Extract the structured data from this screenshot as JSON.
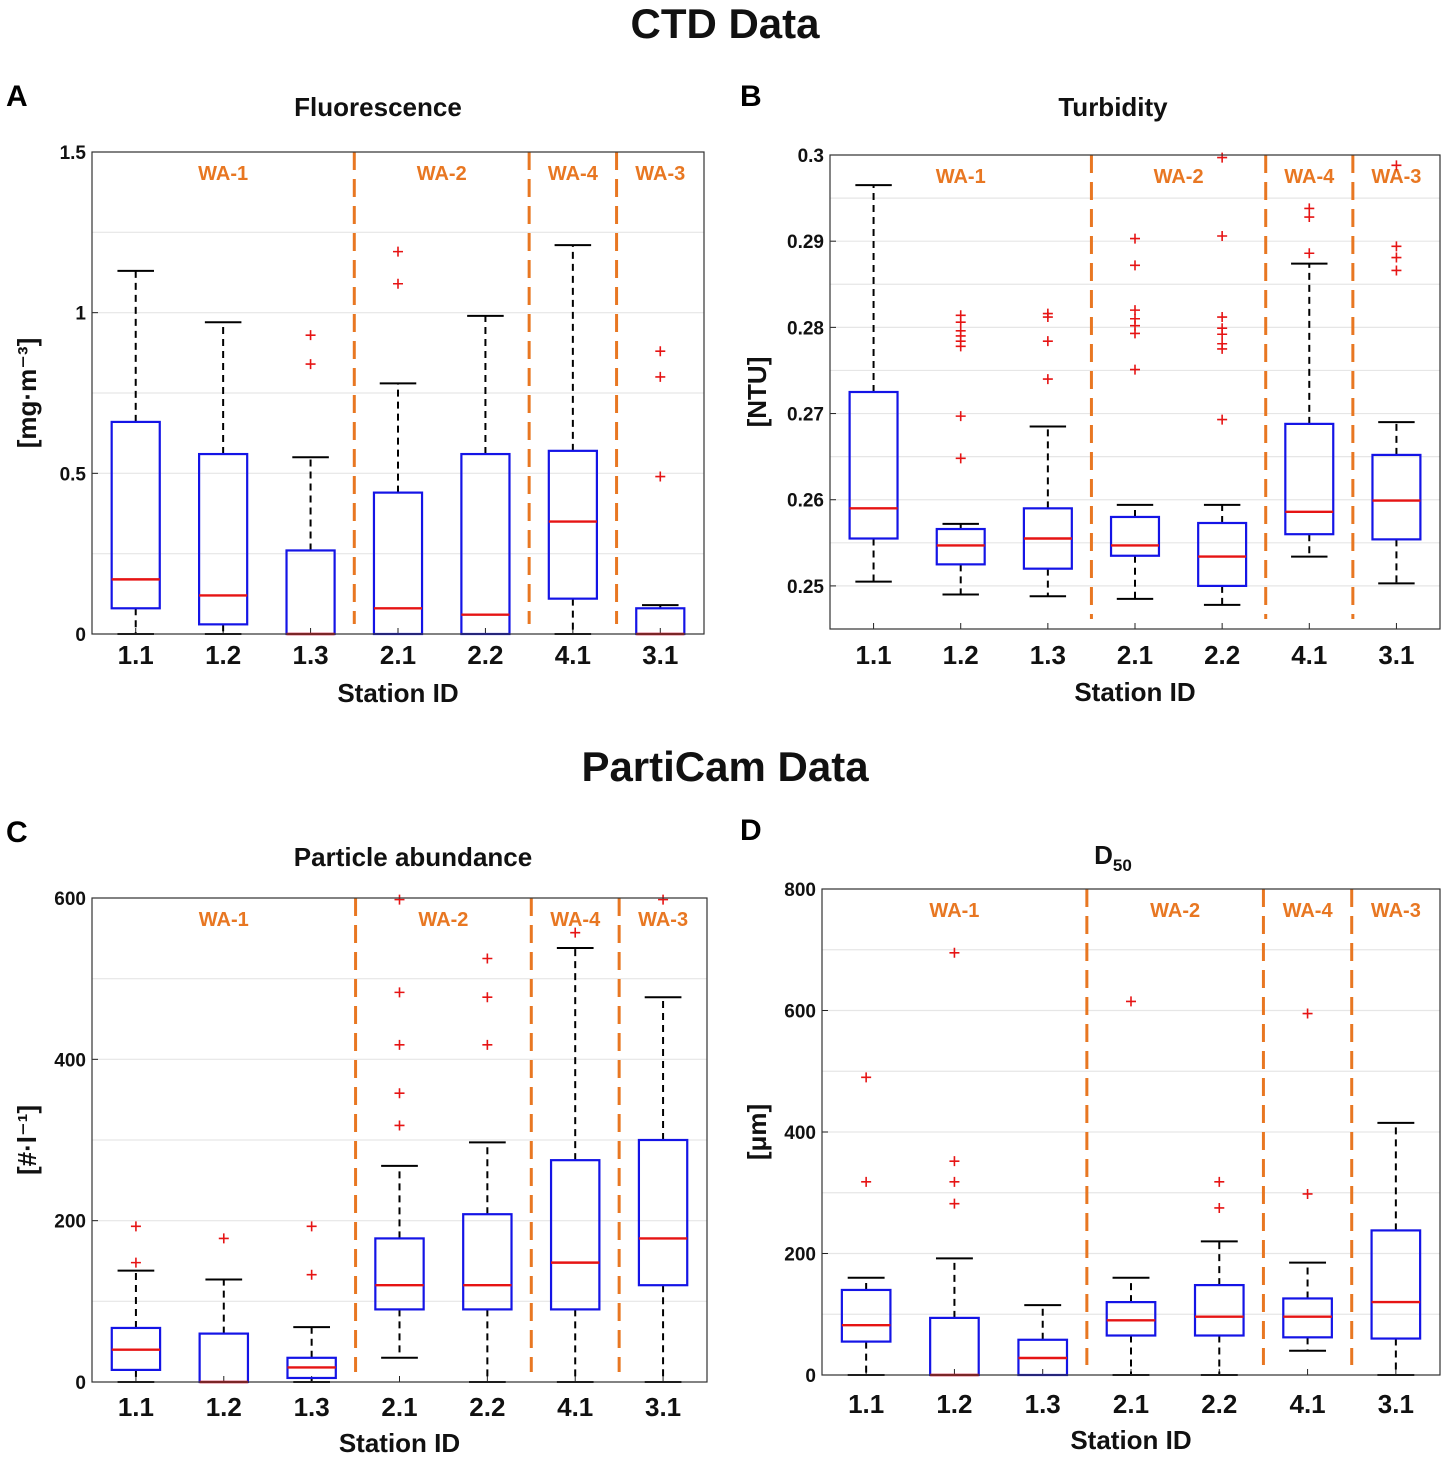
{
  "sections": {
    "ctd_title": "CTD Data",
    "particam_title": "PartiCam Data"
  },
  "colors": {
    "box": "#1414E6",
    "median": "#E61414",
    "outlier": "#E61414",
    "whisker": "#000000",
    "divider": "#E87722",
    "region_label": "#E87722",
    "grid": "#E6E6E6"
  },
  "chart_data": [
    {
      "type": "box",
      "panel": "A",
      "title": "Fluorescence",
      "ylabel": "[mg·m⁻³]",
      "xlabel": "Station ID",
      "ylim": [
        0,
        1.5
      ],
      "yticks": [
        0,
        0.5,
        1,
        1.5
      ],
      "ytick_labels": [
        "0",
        "0.5",
        "1",
        "1.5"
      ],
      "grid": true,
      "categories": [
        "1.1",
        "1.2",
        "1.3",
        "2.1",
        "2.2",
        "4.1",
        "3.1"
      ],
      "regions": [
        {
          "label": "WA-1",
          "start": 0,
          "end": 2
        },
        {
          "label": "WA-2",
          "start": 3,
          "end": 4
        },
        {
          "label": "WA-4",
          "start": 5,
          "end": 5
        },
        {
          "label": "WA-3",
          "start": 6,
          "end": 6
        }
      ],
      "boxes": [
        {
          "q1": 0.08,
          "median": 0.17,
          "q3": 0.66,
          "lo": 0.0,
          "hi": 1.13,
          "outliers": []
        },
        {
          "q1": 0.03,
          "median": 0.12,
          "q3": 0.56,
          "lo": 0.0,
          "hi": 0.97,
          "outliers": []
        },
        {
          "q1": 0.0,
          "median": 0.0,
          "q3": 0.26,
          "lo": 0.0,
          "hi": 0.55,
          "outliers": [
            0.84,
            0.93
          ]
        },
        {
          "q1": 0.0,
          "median": 0.08,
          "q3": 0.44,
          "lo": 0.0,
          "hi": 0.78,
          "outliers": [
            1.09,
            1.19
          ]
        },
        {
          "q1": 0.0,
          "median": 0.06,
          "q3": 0.56,
          "lo": 0.0,
          "hi": 0.99,
          "outliers": []
        },
        {
          "q1": 0.11,
          "median": 0.35,
          "q3": 0.57,
          "lo": 0.0,
          "hi": 1.21,
          "outliers": []
        },
        {
          "q1": 0.0,
          "median": 0.0,
          "q3": 0.08,
          "lo": 0.0,
          "hi": 0.09,
          "outliers": [
            0.49,
            0.8,
            0.88
          ]
        }
      ]
    },
    {
      "type": "box",
      "panel": "B",
      "title": "Turbidity",
      "ylabel": "[NTU]",
      "xlabel": "Station ID",
      "ylim": [
        0.245,
        0.3
      ],
      "yticks": [
        0.25,
        0.26,
        0.27,
        0.28,
        0.29,
        0.3
      ],
      "ytick_labels": [
        "0.25",
        "0.26",
        "0.27",
        "0.28",
        "0.29",
        "0.3"
      ],
      "grid": true,
      "categories": [
        "1.1",
        "1.2",
        "1.3",
        "2.1",
        "2.2",
        "4.1",
        "3.1"
      ],
      "regions": [
        {
          "label": "WA-1",
          "start": 0,
          "end": 2
        },
        {
          "label": "WA-2",
          "start": 3,
          "end": 4
        },
        {
          "label": "WA-4",
          "start": 5,
          "end": 5
        },
        {
          "label": "WA-3",
          "start": 6,
          "end": 6
        }
      ],
      "boxes": [
        {
          "q1": 0.2555,
          "median": 0.259,
          "q3": 0.2725,
          "lo": 0.2505,
          "hi": 0.2965,
          "outliers": []
        },
        {
          "q1": 0.2525,
          "median": 0.2547,
          "q3": 0.2566,
          "lo": 0.249,
          "hi": 0.2572,
          "outliers": [
            0.2648,
            0.2697,
            0.2778,
            0.2784,
            0.279,
            0.2796,
            0.2806,
            0.2814
          ]
        },
        {
          "q1": 0.252,
          "median": 0.2555,
          "q3": 0.259,
          "lo": 0.2488,
          "hi": 0.2685,
          "outliers": [
            0.274,
            0.2784,
            0.2812,
            0.2816
          ]
        },
        {
          "q1": 0.2535,
          "median": 0.2547,
          "q3": 0.258,
          "lo": 0.2485,
          "hi": 0.2594,
          "outliers": [
            0.2751,
            0.2793,
            0.2802,
            0.281,
            0.282,
            0.2872,
            0.2903
          ]
        },
        {
          "q1": 0.25,
          "median": 0.2534,
          "q3": 0.2573,
          "lo": 0.2478,
          "hi": 0.2594,
          "outliers": [
            0.2693,
            0.2775,
            0.2781,
            0.2792,
            0.2799,
            0.2812,
            0.2906,
            0.2997
          ]
        },
        {
          "q1": 0.256,
          "median": 0.2586,
          "q3": 0.2688,
          "lo": 0.2534,
          "hi": 0.2874,
          "outliers": [
            0.2886,
            0.2928,
            0.2938
          ]
        },
        {
          "q1": 0.2554,
          "median": 0.2599,
          "q3": 0.2652,
          "lo": 0.2503,
          "hi": 0.269,
          "outliers": [
            0.2866,
            0.2881,
            0.2894,
            0.2988
          ]
        }
      ]
    },
    {
      "type": "box",
      "panel": "C",
      "title": "Particle abundance",
      "ylabel": "[#·l⁻¹]",
      "xlabel": "Station ID",
      "ylim": [
        0,
        600
      ],
      "yticks": [
        0,
        200,
        400,
        600
      ],
      "ytick_labels": [
        "0",
        "200",
        "400",
        "600"
      ],
      "grid": true,
      "categories": [
        "1.1",
        "1.2",
        "1.3",
        "2.1",
        "2.2",
        "4.1",
        "3.1"
      ],
      "regions": [
        {
          "label": "WA-1",
          "start": 0,
          "end": 2
        },
        {
          "label": "WA-2",
          "start": 3,
          "end": 4
        },
        {
          "label": "WA-4",
          "start": 5,
          "end": 5
        },
        {
          "label": "WA-3",
          "start": 6,
          "end": 6
        }
      ],
      "boxes": [
        {
          "q1": 15,
          "median": 40,
          "q3": 67,
          "lo": 0,
          "hi": 138,
          "outliers": [
            148,
            193
          ]
        },
        {
          "q1": 0,
          "median": 0,
          "q3": 60,
          "lo": 0,
          "hi": 127,
          "outliers": [
            178
          ]
        },
        {
          "q1": 5,
          "median": 18,
          "q3": 30,
          "lo": 0,
          "hi": 68,
          "outliers": [
            133,
            193
          ]
        },
        {
          "q1": 90,
          "median": 120,
          "q3": 178,
          "lo": 30,
          "hi": 268,
          "outliers": [
            318,
            358,
            418,
            483,
            598
          ]
        },
        {
          "q1": 90,
          "median": 120,
          "q3": 208,
          "lo": 0,
          "hi": 297,
          "outliers": [
            418,
            477,
            525
          ]
        },
        {
          "q1": 90,
          "median": 148,
          "q3": 275,
          "lo": 0,
          "hi": 538,
          "outliers": [
            557
          ]
        },
        {
          "q1": 120,
          "median": 178,
          "q3": 300,
          "lo": 0,
          "hi": 477,
          "outliers": [
            598
          ]
        }
      ]
    },
    {
      "type": "box",
      "panel": "D",
      "title": "D",
      "title_sub": "50",
      "ylabel": "[μm]",
      "xlabel": "Station ID",
      "ylim": [
        0,
        800
      ],
      "yticks": [
        0,
        200,
        400,
        600,
        800
      ],
      "ytick_labels": [
        "0",
        "200",
        "400",
        "600",
        "800"
      ],
      "grid": true,
      "categories": [
        "1.1",
        "1.2",
        "1.3",
        "2.1",
        "2.2",
        "4.1",
        "3.1"
      ],
      "regions": [
        {
          "label": "WA-1",
          "start": 0,
          "end": 2
        },
        {
          "label": "WA-2",
          "start": 3,
          "end": 4
        },
        {
          "label": "WA-4",
          "start": 5,
          "end": 5
        },
        {
          "label": "WA-3",
          "start": 6,
          "end": 6
        }
      ],
      "boxes": [
        {
          "q1": 55,
          "median": 82,
          "q3": 140,
          "lo": 0,
          "hi": 160,
          "outliers": [
            318,
            490
          ]
        },
        {
          "q1": 0,
          "median": 0,
          "q3": 94,
          "lo": 0,
          "hi": 192,
          "outliers": [
            282,
            318,
            352,
            695
          ]
        },
        {
          "q1": 0,
          "median": 28,
          "q3": 58,
          "lo": 0,
          "hi": 115,
          "outliers": []
        },
        {
          "q1": 65,
          "median": 90,
          "q3": 120,
          "lo": 0,
          "hi": 160,
          "outliers": [
            615
          ]
        },
        {
          "q1": 65,
          "median": 96,
          "q3": 148,
          "lo": 0,
          "hi": 220,
          "outliers": [
            275,
            318
          ]
        },
        {
          "q1": 62,
          "median": 96,
          "q3": 126,
          "lo": 40,
          "hi": 185,
          "outliers": [
            298,
            595
          ]
        },
        {
          "q1": 60,
          "median": 120,
          "q3": 238,
          "lo": 0,
          "hi": 415,
          "outliers": []
        }
      ]
    }
  ]
}
